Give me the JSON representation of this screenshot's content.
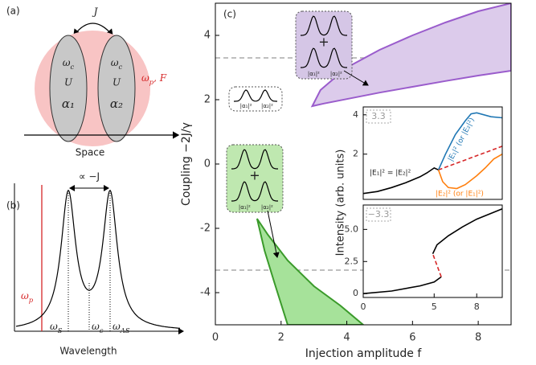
{
  "panel_a": {
    "label": "(a)",
    "coupling": "J",
    "left_mode": {
      "frequency": {
        "base": "ω",
        "sub": "c"
      },
      "interaction": "U",
      "field": "α₁"
    },
    "right_mode": {
      "frequency": {
        "base": "ω",
        "sub": "c"
      },
      "interaction": "U",
      "field": "α₂"
    },
    "pump": {
      "base": "ω",
      "sub": "p",
      "rest": ", F"
    },
    "axis_label": "Space"
  },
  "panel_b": {
    "label": "(b)",
    "splitting": "∝ −J",
    "pump": {
      "base": "ω",
      "sub": "p"
    },
    "stokes": {
      "base": "ω",
      "sub": "S"
    },
    "center": {
      "base": "ω",
      "sub": "c"
    },
    "antistokes": {
      "base": "ω",
      "sub": "AS"
    },
    "axis_label": "Wavelength"
  },
  "panel_c": {
    "label": "(c)",
    "sketch_symmetric_broken": {
      "plus": "+",
      "mode1": "|α₁|²",
      "mode2": "|α₂|²"
    },
    "sketch_symmetric": {
      "mode1": "|α₁|²",
      "mode2": "|α₂|²"
    },
    "sketch_antisymmetric_broken": {
      "plus": "+",
      "mode1": "|α₁|²",
      "mode2": "|α₂|²"
    }
  },
  "chart_data": [
    {
      "type": "area",
      "x_label": "Injection amplitude f",
      "y_label": "Coupling −2J/γ",
      "xlim": [
        0,
        9
      ],
      "ylim": [
        -5,
        5
      ],
      "xticks": [
        0,
        2,
        4,
        6,
        8
      ],
      "yticks": [
        -4,
        -2,
        0,
        2,
        4
      ],
      "reference_lines": [
        3.3,
        -3.3
      ],
      "reference_color": "#aaaaaa",
      "series": [
        {
          "color": "#9a5ccc",
          "fill": "#dccbeb",
          "x": [
            2.95,
            3.2,
            4,
            5,
            6,
            7,
            8,
            9,
            9,
            8,
            7,
            6,
            5,
            4,
            3.3
          ],
          "values": [
            1.8,
            2.3,
            3.0,
            3.55,
            4.0,
            4.4,
            4.75,
            5.0,
            2.9,
            2.75,
            2.58,
            2.4,
            2.22,
            2.02,
            1.88
          ]
        },
        {
          "color": "#3a9a2a",
          "fill": "#a6e29a",
          "x": [
            1.27,
            1.6,
            2.2,
            3.0,
            3.8,
            4.5,
            2.2,
            1.8,
            1.5
          ],
          "values": [
            -1.7,
            -2.2,
            -3.0,
            -3.8,
            -4.4,
            -5.0,
            -5.0,
            -3.7,
            -2.7
          ]
        }
      ]
    },
    {
      "type": "line",
      "label": "3.3",
      "xlim": [
        0,
        9.8
      ],
      "ylim": [
        -0.3,
        4.4
      ],
      "yticks": [
        2,
        4
      ],
      "annotations": [
        "|E₁|² = |E₂|²",
        "|E₁|² (or |E₂|²)",
        "|E₂|² (or |E₁|²)"
      ],
      "series": [
        {
          "color": "#000000",
          "x": [
            0,
            1,
            2,
            3,
            4,
            4.5,
            5.0,
            5.3
          ],
          "values": [
            0,
            0.1,
            0.3,
            0.55,
            0.85,
            1.05,
            1.3,
            1.2
          ]
        },
        {
          "color": "#d62728",
          "dash": true,
          "x": [
            5.3,
            9.8
          ],
          "values": [
            1.2,
            2.4
          ]
        },
        {
          "color": "#1f77b4",
          "x": [
            5.3,
            5.8,
            6.5,
            7.2,
            7.6,
            8,
            9,
            9.8
          ],
          "values": [
            1.2,
            2.0,
            3.0,
            3.7,
            4.05,
            4.1,
            3.9,
            3.85
          ]
        },
        {
          "color": "#ff7f0e",
          "x": [
            5.3,
            5.6,
            6,
            6.6,
            7.2,
            8,
            8.6,
            9.2,
            9.8
          ],
          "values": [
            1.2,
            0.6,
            0.3,
            0.25,
            0.45,
            0.9,
            1.3,
            1.75,
            2.0
          ]
        }
      ]
    },
    {
      "type": "line",
      "label": "−3.3",
      "y_label": "Intensity (arb. units)",
      "xlim": [
        0,
        9.8
      ],
      "ylim": [
        -0.3,
        6.9
      ],
      "xticks": [
        0,
        5,
        8
      ],
      "yticks": [
        0,
        2.5,
        {
          "value": 5,
          "label": "5.0"
        }
      ],
      "series": [
        {
          "color": "#000000",
          "x": [
            0,
            2,
            4,
            5,
            5.5
          ],
          "values": [
            0,
            0.2,
            0.6,
            0.9,
            1.3
          ]
        },
        {
          "color": "#d62728",
          "dash": true,
          "x": [
            5.5,
            5.2,
            4.9
          ],
          "values": [
            1.3,
            2.2,
            3.1
          ]
        },
        {
          "color": "#000000",
          "x": [
            4.9,
            5.2,
            6,
            7,
            8,
            9.8
          ],
          "values": [
            3.1,
            3.8,
            4.5,
            5.2,
            5.8,
            6.6
          ]
        }
      ]
    }
  ]
}
